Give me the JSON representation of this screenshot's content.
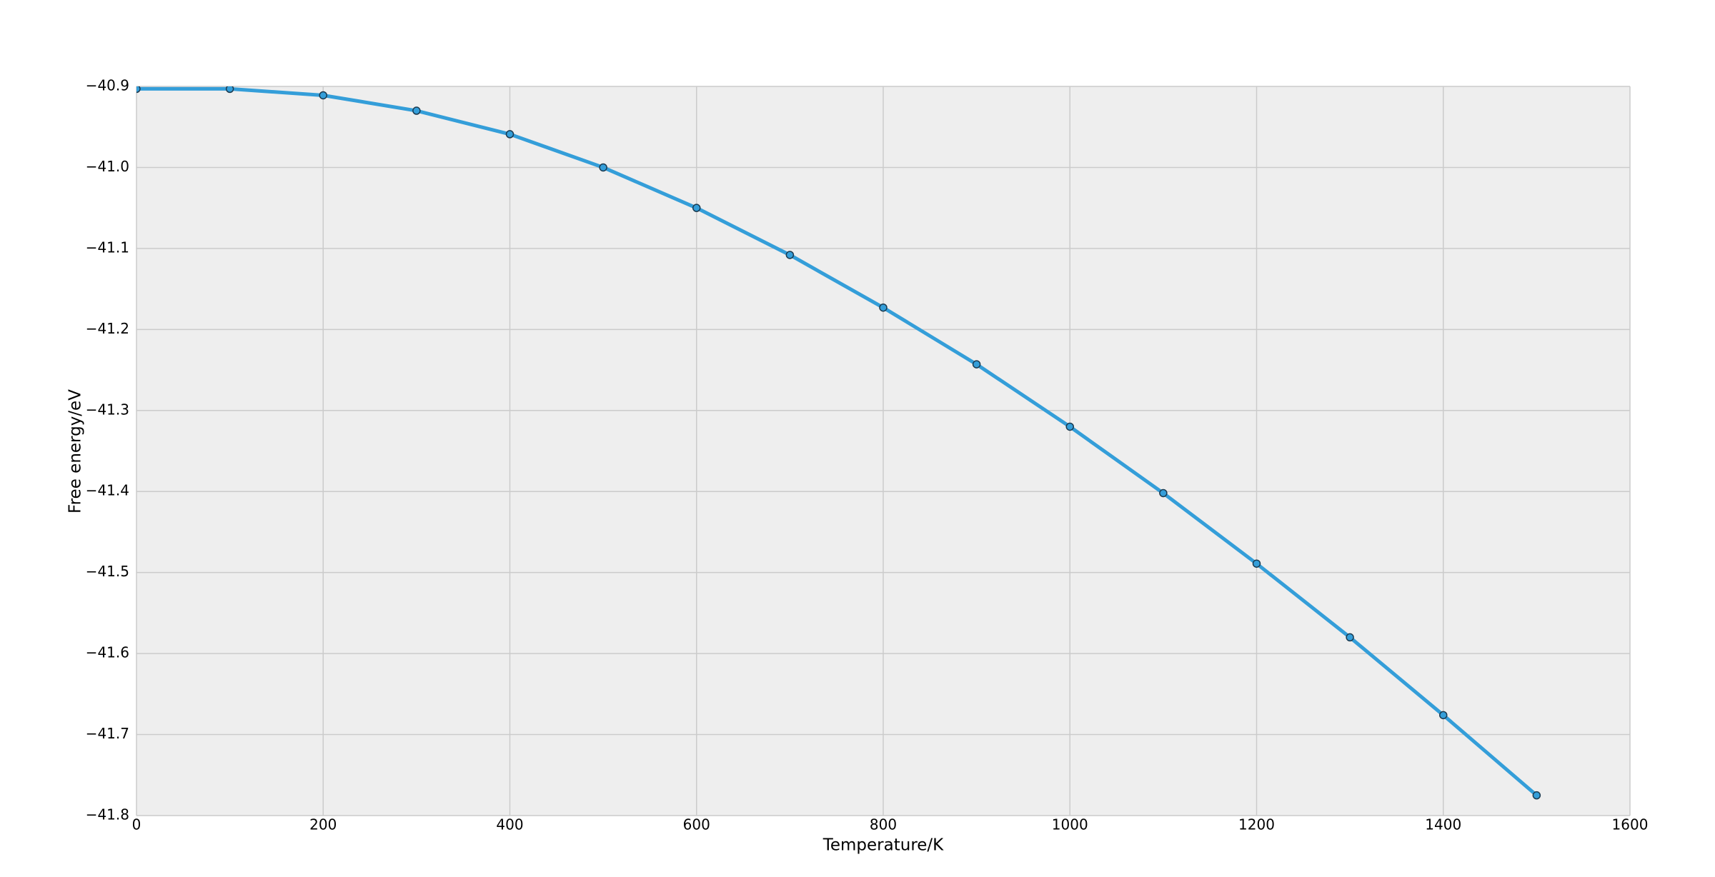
{
  "chart_data": {
    "type": "line",
    "xlabel": "Temperature/K",
    "ylabel": "Free energy/eV",
    "x": [
      0,
      100,
      200,
      300,
      400,
      500,
      600,
      700,
      800,
      900,
      1000,
      1100,
      1200,
      1300,
      1400,
      1500
    ],
    "series": [
      {
        "color": "#349ed9",
        "values": [
          -40.903,
          -40.903,
          -40.911,
          -40.93,
          -40.959,
          -41.0,
          -41.05,
          -41.108,
          -41.173,
          -41.243,
          -41.32,
          -41.402,
          -41.489,
          -41.58,
          -41.676,
          -41.775
        ]
      }
    ],
    "xlim": [
      0,
      1600
    ],
    "xticks": [
      0,
      200,
      400,
      600,
      800,
      1000,
      1200,
      1400,
      1600
    ],
    "ylim": [
      -41.8,
      -40.9
    ],
    "yticks": [
      {
        "value": -41.8,
        "label": "−41.8"
      },
      {
        "value": -41.7,
        "label": "−41.7"
      },
      {
        "value": -41.6,
        "label": "−41.6"
      },
      {
        "value": -41.5,
        "label": "−41.5"
      },
      {
        "value": -41.4,
        "label": "−41.4"
      },
      {
        "value": -41.3,
        "label": "−41.3"
      },
      {
        "value": -41.2,
        "label": "−41.2"
      },
      {
        "value": -41.1,
        "label": "−41.1"
      },
      {
        "value": -41.0,
        "label": "−41.0"
      },
      {
        "value": -40.9,
        "label": "−40.9"
      }
    ],
    "grid": true,
    "markers": true
  }
}
